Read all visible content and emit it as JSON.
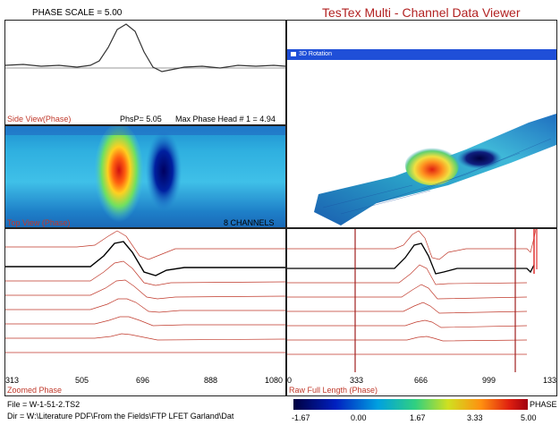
{
  "header": {
    "phase_scale_label": "PHASE SCALE = ",
    "phase_scale_value": "5.00",
    "app_title": "TesTex  Multi - Channel  Data  Viewer"
  },
  "side_view": {
    "label": "Side View(Phase)",
    "php_label": "PhsP= 5.05",
    "max_phase_label": "Max Phase Head # 1 = 4.94"
  },
  "top_view": {
    "label": "Top View (Phase)",
    "channels_label": "8 CHANNELS"
  },
  "rotation_window": {
    "title": "3D Rotation"
  },
  "zoomed": {
    "label": "Zoomed Phase",
    "ticks": [
      "313",
      "505",
      "696",
      "888",
      "1080"
    ]
  },
  "raw": {
    "label": "Raw Full Length (Phase)",
    "ticks": [
      "0",
      "333",
      "666",
      "999",
      "133"
    ]
  },
  "scale_bar": {
    "title": "PHASE",
    "values": [
      "-1.67",
      "0.00",
      "1.67",
      "3.33",
      "5.00"
    ]
  },
  "file_info": {
    "file_line": "File = W-1-51-2.TS2",
    "dir_line": "Dir = W:\\Literature PDF\\From the Fields\\FTP LFET Garland\\Dat"
  },
  "colors": {
    "trace_red": "#c0392b",
    "title_red": "#b22222",
    "window_title_bar": "#1f4fd8"
  }
}
